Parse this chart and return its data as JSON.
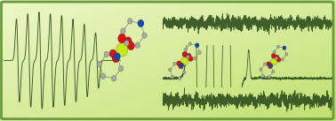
{
  "bg_color_lt": "#eef8c8",
  "bg_color_rb": "#c0e070",
  "border_color": "#6a9a40",
  "line_color": "#2a4a1a",
  "fig_width": 3.78,
  "fig_height": 1.37,
  "dpi": 100,
  "epr_seed": 7,
  "nmr_seed1": 11,
  "nmr_seed2": 22,
  "nmr_seed3": 33
}
